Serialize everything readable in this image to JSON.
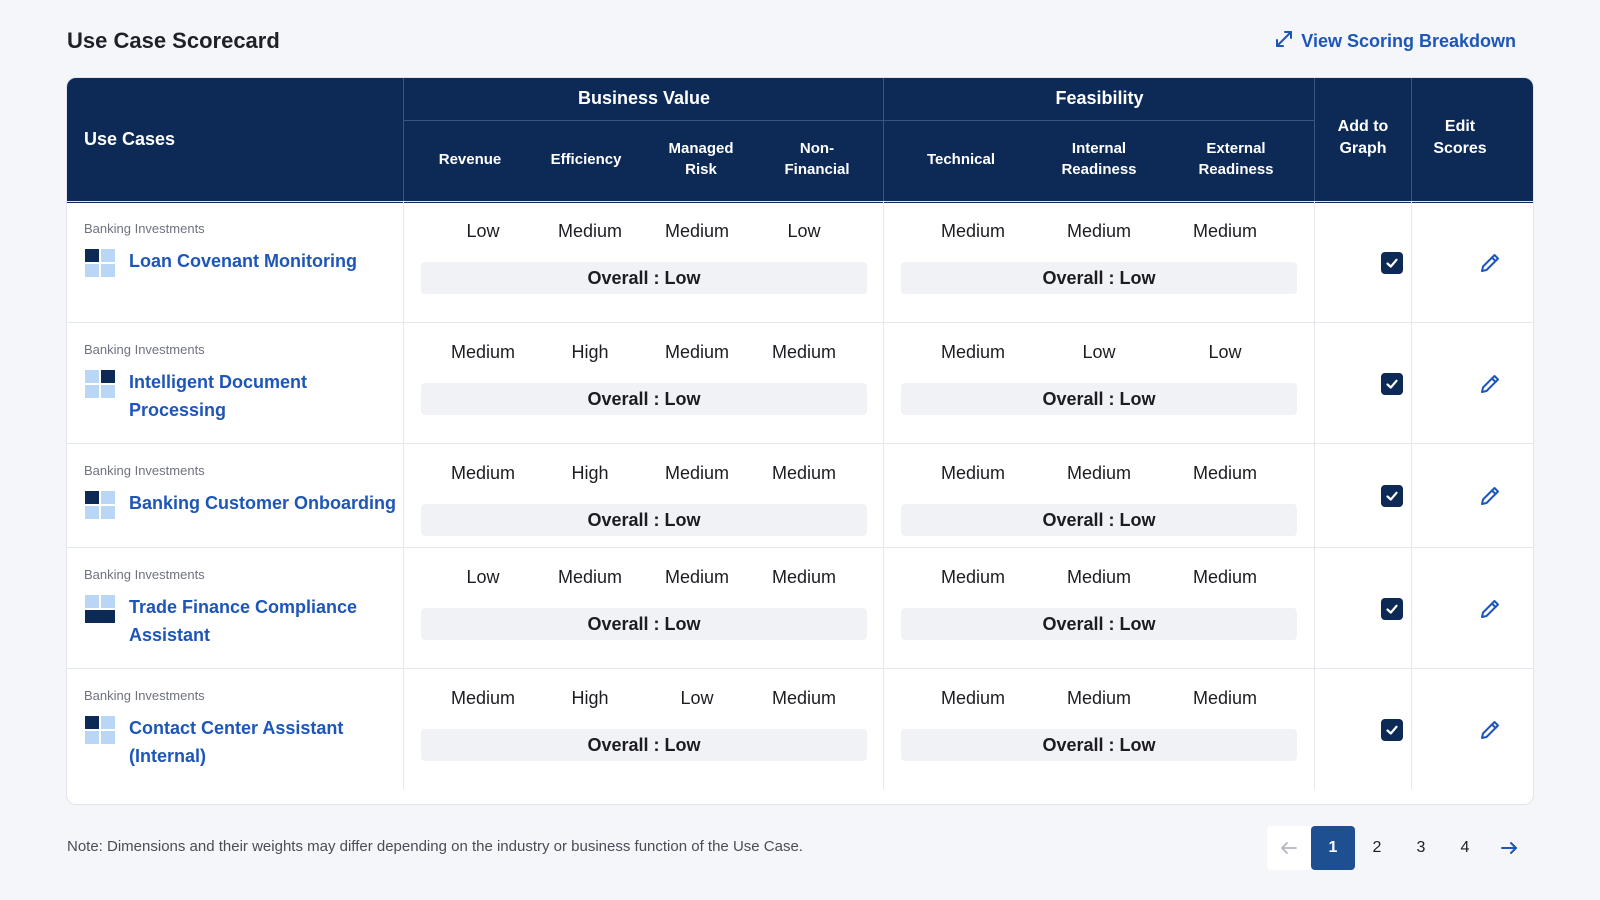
{
  "header": {
    "title": "Use Case Scorecard",
    "breakdown_link": "View Scoring Breakdown",
    "link_icon": "expand-arrows-icon"
  },
  "table": {
    "headers": {
      "use_cases": "Use Cases",
      "business_value": "Business Value",
      "feasibility": "Feasibility",
      "business_cols": [
        "Revenue",
        "Efficiency",
        "Managed\nRisk",
        "Non-\nFinancial"
      ],
      "feasibility_cols": [
        "Technical",
        "Internal\nReadiness",
        "External\nReadiness"
      ],
      "add_to_graph": "Add to\nGraph",
      "edit_scores": "Edit\nScores"
    },
    "rows": [
      {
        "category": "Banking Investments",
        "name": "Loan Covenant Monitoring",
        "business": [
          "Low",
          "Medium",
          "Medium",
          "Low"
        ],
        "business_overall": "Overall : Low",
        "feasibility": [
          "Medium",
          "Medium",
          "Medium"
        ],
        "feasibility_overall": "Overall : Low",
        "add_to_graph": true
      },
      {
        "category": "Banking Investments",
        "name": "Intelligent Document Processing",
        "business": [
          "Medium",
          "High",
          "Medium",
          "Medium"
        ],
        "business_overall": "Overall : Low",
        "feasibility": [
          "Medium",
          "Low",
          "Low"
        ],
        "feasibility_overall": "Overall : Low",
        "add_to_graph": true
      },
      {
        "category": "Banking Investments",
        "name": "Banking Customer Onboarding",
        "business": [
          "Medium",
          "High",
          "Medium",
          "Medium"
        ],
        "business_overall": "Overall : Low",
        "feasibility": [
          "Medium",
          "Medium",
          "Medium"
        ],
        "feasibility_overall": "Overall : Low",
        "add_to_graph": true
      },
      {
        "category": "Banking Investments",
        "name": "Trade Finance Compliance Assistant",
        "business": [
          "Low",
          "Medium",
          "Medium",
          "Medium"
        ],
        "business_overall": "Overall : Low",
        "feasibility": [
          "Medium",
          "Medium",
          "Medium"
        ],
        "feasibility_overall": "Overall : Low",
        "add_to_graph": true
      },
      {
        "category": "Banking Investments",
        "name": "Contact Center Assistant (Internal)",
        "business": [
          "Medium",
          "High",
          "Low",
          "Medium"
        ],
        "business_overall": "Overall : Low",
        "feasibility": [
          "Medium",
          "Medium",
          "Medium"
        ],
        "feasibility_overall": "Overall : Low",
        "add_to_graph": true
      }
    ]
  },
  "footer": {
    "note": "Note: Dimensions and their weights may differ depending on the industry or business function of the Use Case.",
    "pages": [
      "1",
      "2",
      "3",
      "4"
    ],
    "active_page": "1"
  },
  "colors": {
    "header_bg": "#0d2a57",
    "link": "#1d56b8",
    "active_page": "#1d4f91"
  }
}
